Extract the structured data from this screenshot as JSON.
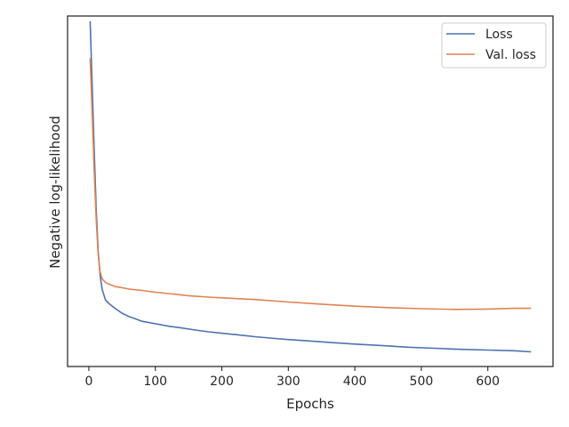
{
  "chart_data": {
    "type": "line",
    "title": "",
    "xlabel": "Epochs",
    "ylabel": "Negative log-likelihood",
    "xlim": [
      -32,
      698
    ],
    "ylim": [
      0,
      100
    ],
    "x_ticks": [
      0,
      100,
      200,
      300,
      400,
      500,
      600
    ],
    "y_ticks_visible": false,
    "grid": false,
    "legend": {
      "position": "top-right",
      "entries": [
        "Loss",
        "Val. loss"
      ]
    },
    "series": [
      {
        "name": "Loss",
        "color": "#4c72b0",
        "points": [
          [
            2,
            98.5
          ],
          [
            5,
            80
          ],
          [
            8,
            62
          ],
          [
            11,
            45
          ],
          [
            14,
            33
          ],
          [
            17,
            26
          ],
          [
            20,
            22
          ],
          [
            25,
            19
          ],
          [
            30,
            18
          ],
          [
            40,
            16.5
          ],
          [
            50,
            15.2
          ],
          [
            60,
            14.3
          ],
          [
            70,
            13.6
          ],
          [
            80,
            12.9
          ],
          [
            100,
            12.2
          ],
          [
            120,
            11.5
          ],
          [
            140,
            11
          ],
          [
            160,
            10.4
          ],
          [
            180,
            9.9
          ],
          [
            200,
            9.5
          ],
          [
            220,
            9.1
          ],
          [
            250,
            8.5
          ],
          [
            280,
            8
          ],
          [
            300,
            7.7
          ],
          [
            330,
            7.3
          ],
          [
            360,
            6.9
          ],
          [
            400,
            6.4
          ],
          [
            440,
            6
          ],
          [
            480,
            5.5
          ],
          [
            520,
            5.2
          ],
          [
            560,
            4.9
          ],
          [
            600,
            4.7
          ],
          [
            640,
            4.5
          ],
          [
            665,
            4.2
          ]
        ]
      },
      {
        "name": "Val. loss",
        "color": "#dd8452",
        "points": [
          [
            2,
            88
          ],
          [
            5,
            72
          ],
          [
            8,
            56
          ],
          [
            11,
            42
          ],
          [
            14,
            32
          ],
          [
            17,
            27
          ],
          [
            20,
            25
          ],
          [
            25,
            24
          ],
          [
            30,
            23.5
          ],
          [
            40,
            22.8
          ],
          [
            50,
            22.5
          ],
          [
            60,
            22.1
          ],
          [
            80,
            21.7
          ],
          [
            100,
            21.2
          ],
          [
            120,
            20.8
          ],
          [
            150,
            20.2
          ],
          [
            180,
            19.8
          ],
          [
            200,
            19.6
          ],
          [
            250,
            19.1
          ],
          [
            300,
            18.4
          ],
          [
            350,
            17.8
          ],
          [
            400,
            17.2
          ],
          [
            450,
            16.8
          ],
          [
            500,
            16.5
          ],
          [
            550,
            16.3
          ],
          [
            600,
            16.4
          ],
          [
            640,
            16.6
          ],
          [
            665,
            16.6
          ]
        ]
      }
    ]
  }
}
